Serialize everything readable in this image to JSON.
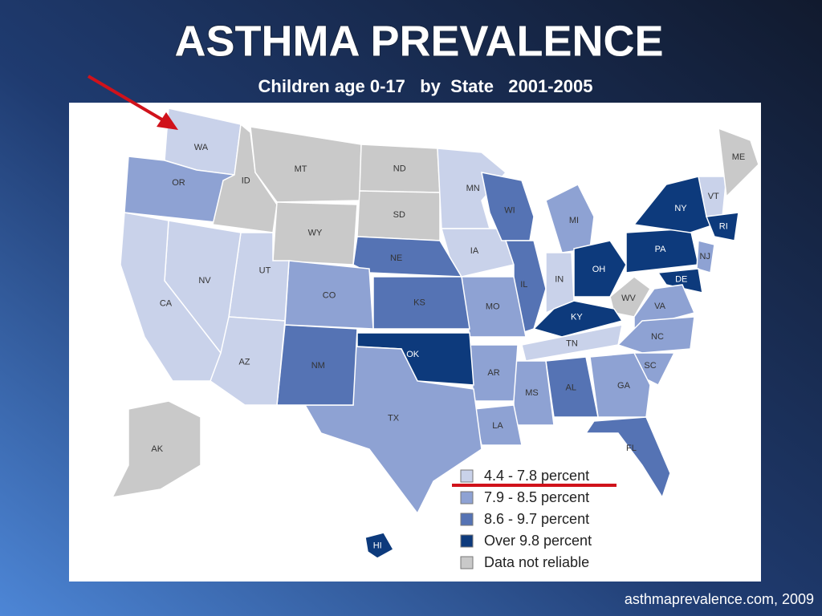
{
  "title": "ASTHMA PREVALENCE",
  "subtitle": "Children age 0-17   by  State   2001-2005",
  "legend": [
    {
      "label": "4.4 - 7.8 percent",
      "color": "#c9d2ea"
    },
    {
      "label": "7.9 - 8.5 percent",
      "color": "#8ea2d3"
    },
    {
      "label": "8.6 - 9.7 percent",
      "color": "#5573b4"
    },
    {
      "label": "Over 9.8 percent",
      "color": "#0d3a7c"
    },
    {
      "label": "Data not reliable",
      "color": "#c9c9c9"
    }
  ],
  "states": [
    {
      "label": "WA",
      "category": 0
    },
    {
      "label": "OR",
      "category": 1
    },
    {
      "label": "ID",
      "category": 4
    },
    {
      "label": "MT",
      "category": 4
    },
    {
      "label": "ND",
      "category": 4
    },
    {
      "label": "SD",
      "category": 4
    },
    {
      "label": "WY",
      "category": 4
    },
    {
      "label": "NE",
      "category": 2
    },
    {
      "label": "MN",
      "category": 0
    },
    {
      "label": "IA",
      "category": 0
    },
    {
      "label": "WI",
      "category": 2
    },
    {
      "label": "MI",
      "category": 1
    },
    {
      "label": "IL",
      "category": 2
    },
    {
      "label": "IN",
      "category": 0
    },
    {
      "label": "OH",
      "category": 3
    },
    {
      "label": "PA",
      "category": 3
    },
    {
      "label": "NY",
      "category": 3
    },
    {
      "label": "VT",
      "category": 0
    },
    {
      "label": "ME",
      "category": 4
    },
    {
      "label": "RI",
      "category": 3
    },
    {
      "label": "NJ",
      "category": 1
    },
    {
      "label": "DE",
      "category": 3
    },
    {
      "label": "WV",
      "category": 4
    },
    {
      "label": "VA",
      "category": 1
    },
    {
      "label": "KY",
      "category": 3
    },
    {
      "label": "TN",
      "category": 0
    },
    {
      "label": "NC",
      "category": 1
    },
    {
      "label": "SC",
      "category": 1
    },
    {
      "label": "GA",
      "category": 1
    },
    {
      "label": "AL",
      "category": 2
    },
    {
      "label": "MS",
      "category": 1
    },
    {
      "label": "FL",
      "category": 2
    },
    {
      "label": "LA",
      "category": 1
    },
    {
      "label": "AR",
      "category": 1
    },
    {
      "label": "MO",
      "category": 1
    },
    {
      "label": "KS",
      "category": 2
    },
    {
      "label": "OK",
      "category": 3
    },
    {
      "label": "TX",
      "category": 1
    },
    {
      "label": "NM",
      "category": 2
    },
    {
      "label": "CO",
      "category": 1
    },
    {
      "label": "UT",
      "category": 0
    },
    {
      "label": "AZ",
      "category": 0
    },
    {
      "label": "NV",
      "category": 0
    },
    {
      "label": "CA",
      "category": 0
    },
    {
      "label": "AK",
      "category": 4
    },
    {
      "label": "HI",
      "category": 3
    }
  ],
  "source": "asthmaprevalence.com, 2009"
}
